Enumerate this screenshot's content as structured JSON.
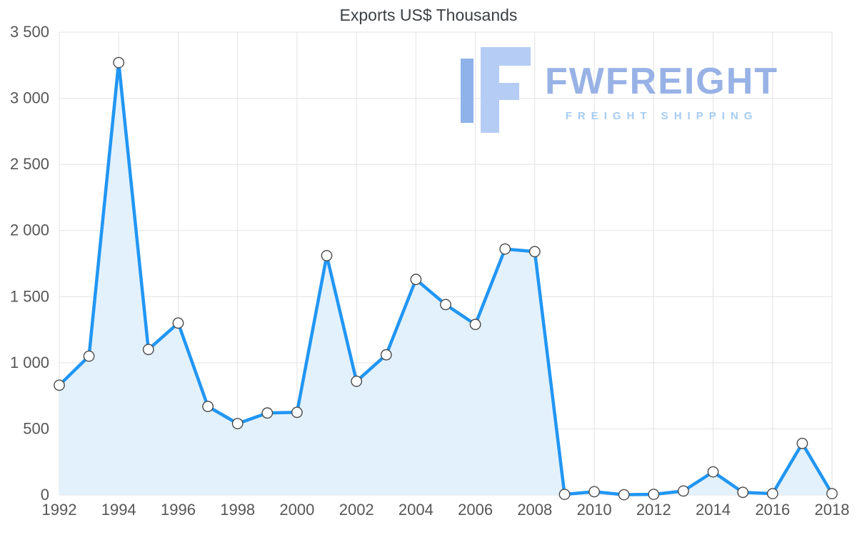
{
  "chart_data": {
    "type": "area",
    "title": "Exports US$ Thousands",
    "xlabel": "",
    "ylabel": "",
    "x": [
      1992,
      1993,
      1994,
      1995,
      1996,
      1997,
      1998,
      1999,
      2000,
      2001,
      2002,
      2003,
      2004,
      2005,
      2006,
      2007,
      2008,
      2009,
      2010,
      2011,
      2012,
      2013,
      2014,
      2015,
      2016,
      2017,
      2018
    ],
    "values": [
      830,
      1050,
      3270,
      1100,
      1300,
      670,
      540,
      620,
      625,
      1810,
      860,
      1060,
      1630,
      1440,
      1290,
      1860,
      1840,
      5,
      25,
      2,
      5,
      30,
      175,
      20,
      10,
      390,
      10
    ],
    "ylim": [
      0,
      3500
    ],
    "yticks": [
      0,
      500,
      1000,
      1500,
      2000,
      2500,
      3000,
      3500
    ],
    "ytick_labels": [
      "0",
      "500",
      "1 000",
      "1 500",
      "2 000",
      "2 500",
      "3 000",
      "3 500"
    ],
    "xtick_labels": [
      "1992",
      "1994",
      "1996",
      "1998",
      "2000",
      "2002",
      "2004",
      "2006",
      "2008",
      "2010",
      "2012",
      "2014",
      "2016",
      "2018"
    ],
    "grid": true,
    "legend": "none",
    "line_color": "#2196f3",
    "fill_color": "#e3f1fd",
    "grid_color": "#e2e2e2",
    "tick_color": "#565656",
    "marker": {
      "fill": "#ffffff",
      "stroke": "#4a4a4a"
    }
  },
  "watermark": {
    "name": "FWFREIGHT",
    "tagline": "FREIGHT SHIPPING",
    "logo_color": "#b5cdf4",
    "logo_accent_color": "#8fb2ea"
  }
}
